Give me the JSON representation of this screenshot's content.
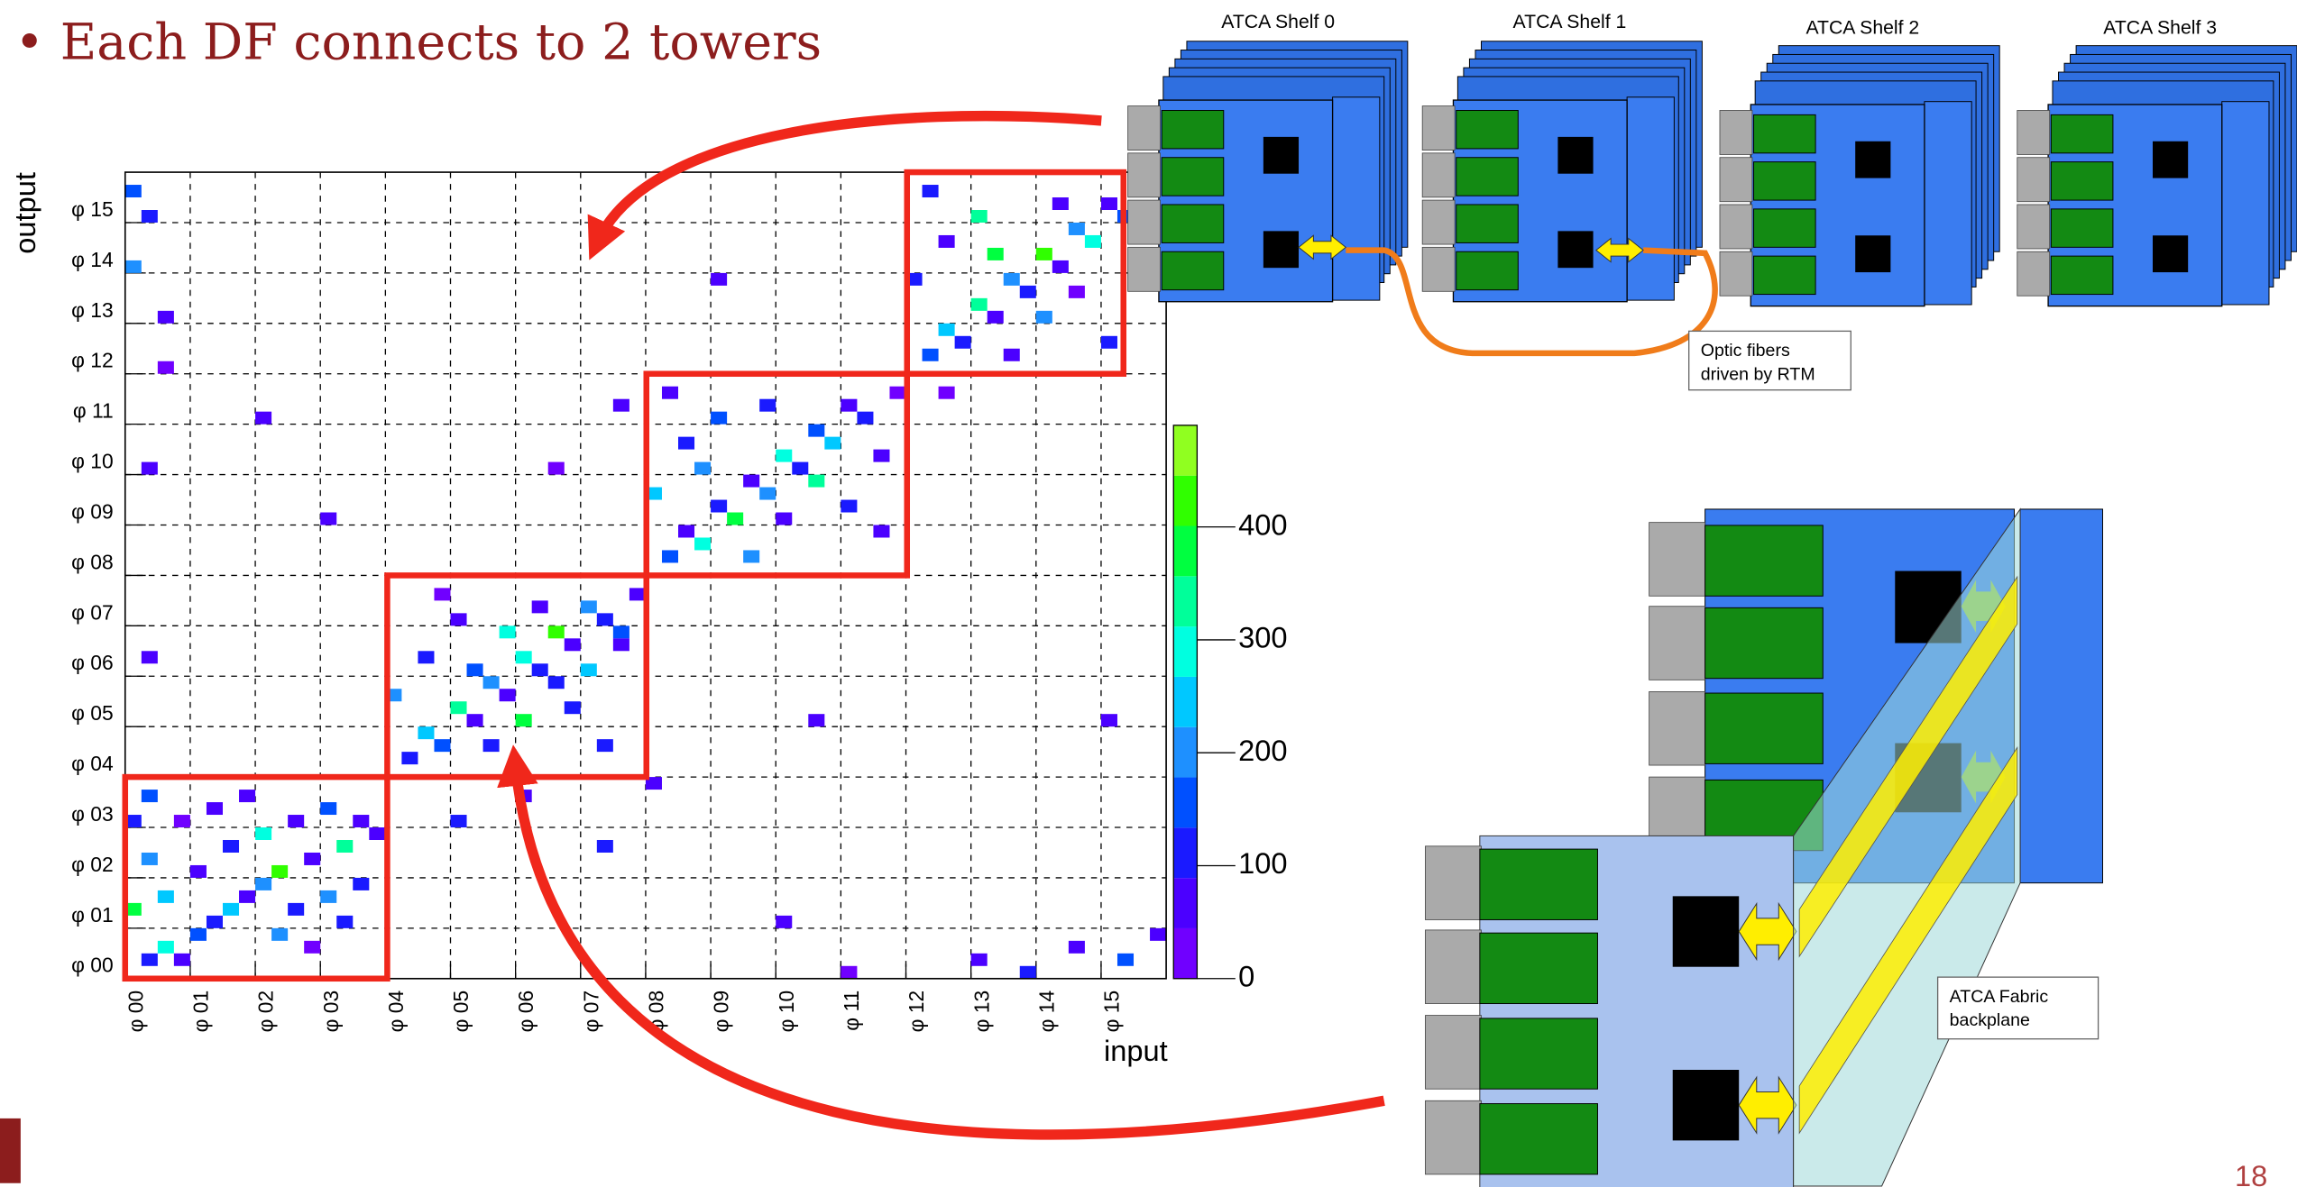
{
  "title": "• Each DF connects to 2 towers",
  "page_number": 18,
  "diagram": {
    "shelves": [
      "ATCA Shelf 0",
      "ATCA Shelf 1",
      "ATCA Shelf 2",
      "ATCA Shelf 3"
    ],
    "fiber_label": [
      "Optic fibers",
      "driven by RTM"
    ],
    "backplane_label": [
      "ATCA Fabric",
      "backplane"
    ]
  },
  "chart_data": {
    "type": "heatmap",
    "x_label": "input",
    "y_label": "output",
    "xlim": [
      0,
      64
    ],
    "ylim": [
      0,
      64
    ],
    "xticks": [
      {
        "value": 0,
        "label": "φ 00"
      },
      {
        "value": 4,
        "label": "φ 01"
      },
      {
        "value": 8,
        "label": "φ 02"
      },
      {
        "value": 12,
        "label": "φ 03"
      },
      {
        "value": 16,
        "label": "φ 04"
      },
      {
        "value": 20,
        "label": "φ 05"
      },
      {
        "value": 24,
        "label": "φ 06"
      },
      {
        "value": 28,
        "label": "φ 07"
      },
      {
        "value": 32,
        "label": "φ 08"
      },
      {
        "value": 36,
        "label": "φ 09"
      },
      {
        "value": 40,
        "label": "φ 10"
      },
      {
        "value": 44,
        "label": "φ 11"
      },
      {
        "value": 48,
        "label": "φ 12"
      },
      {
        "value": 52,
        "label": "φ 13"
      },
      {
        "value": 56,
        "label": "φ 14"
      },
      {
        "value": 60,
        "label": "φ 15"
      }
    ],
    "yticks": [
      {
        "value": 0,
        "label": "φ 00"
      },
      {
        "value": 4,
        "label": "φ 01"
      },
      {
        "value": 8,
        "label": "φ 02"
      },
      {
        "value": 12,
        "label": "φ 03"
      },
      {
        "value": 16,
        "label": "φ 04"
      },
      {
        "value": 20,
        "label": "φ 05"
      },
      {
        "value": 24,
        "label": "φ 06"
      },
      {
        "value": 28,
        "label": "φ 07"
      },
      {
        "value": 32,
        "label": "φ 08"
      },
      {
        "value": 36,
        "label": "φ 09"
      },
      {
        "value": 40,
        "label": "φ 10"
      },
      {
        "value": 44,
        "label": "φ 11"
      },
      {
        "value": 48,
        "label": "φ 12"
      },
      {
        "value": 52,
        "label": "φ 13"
      },
      {
        "value": 56,
        "label": "φ 14"
      },
      {
        "value": 60,
        "label": "φ 15"
      }
    ],
    "grid": true,
    "zlim": [
      0,
      490
    ],
    "zticks": [
      0,
      100,
      200,
      300,
      400
    ],
    "colorscale": [
      "#7000ff",
      "#4b00ff",
      "#1a1aff",
      "#0050ff",
      "#1e90ff",
      "#00c8ff",
      "#00ffe0",
      "#00ff9a",
      "#00ff40",
      "#30ff00",
      "#90ff20"
    ],
    "cells": [
      [
        1,
        1,
        120
      ],
      [
        2,
        2,
        300
      ],
      [
        3,
        1,
        80
      ],
      [
        4,
        3,
        150
      ],
      [
        5,
        4,
        90
      ],
      [
        6,
        5,
        260
      ],
      [
        7,
        6,
        60
      ],
      [
        8,
        7,
        180
      ],
      [
        9,
        8,
        420
      ],
      [
        10,
        5,
        110
      ],
      [
        11,
        9,
        70
      ],
      [
        12,
        6,
        200
      ],
      [
        13,
        10,
        340
      ],
      [
        14,
        7,
        90
      ],
      [
        15,
        11,
        50
      ],
      [
        2,
        6,
        240
      ],
      [
        4,
        8,
        60
      ],
      [
        6,
        10,
        130
      ],
      [
        8,
        11,
        310
      ],
      [
        10,
        12,
        80
      ],
      [
        3,
        12,
        40
      ],
      [
        12,
        13,
        150
      ],
      [
        14,
        12,
        60
      ],
      [
        1,
        9,
        200
      ],
      [
        5,
        13,
        70
      ],
      [
        9,
        3,
        220
      ],
      [
        11,
        2,
        30
      ],
      [
        13,
        4,
        100
      ],
      [
        7,
        14,
        50
      ],
      [
        0,
        5,
        380
      ],
      [
        0,
        12,
        90
      ],
      [
        1,
        14,
        160
      ],
      [
        17,
        17,
        90
      ],
      [
        18,
        19,
        260
      ],
      [
        19,
        18,
        140
      ],
      [
        20,
        21,
        350
      ],
      [
        21,
        20,
        80
      ],
      [
        22,
        23,
        190
      ],
      [
        23,
        22,
        60
      ],
      [
        24,
        25,
        300
      ],
      [
        25,
        24,
        120
      ],
      [
        26,
        27,
        440
      ],
      [
        27,
        26,
        70
      ],
      [
        28,
        29,
        210
      ],
      [
        29,
        28,
        100
      ],
      [
        30,
        27,
        160
      ],
      [
        31,
        30,
        50
      ],
      [
        16,
        22,
        200
      ],
      [
        18,
        25,
        110
      ],
      [
        20,
        28,
        60
      ],
      [
        22,
        18,
        130
      ],
      [
        24,
        20,
        380
      ],
      [
        26,
        23,
        90
      ],
      [
        28,
        24,
        240
      ],
      [
        30,
        26,
        70
      ],
      [
        19,
        30,
        40
      ],
      [
        21,
        24,
        170
      ],
      [
        23,
        27,
        280
      ],
      [
        25,
        29,
        60
      ],
      [
        27,
        21,
        120
      ],
      [
        29,
        18,
        90
      ],
      [
        33,
        33,
        160
      ],
      [
        34,
        35,
        80
      ],
      [
        35,
        34,
        270
      ],
      [
        36,
        37,
        120
      ],
      [
        37,
        36,
        400
      ],
      [
        38,
        39,
        60
      ],
      [
        39,
        38,
        190
      ],
      [
        40,
        41,
        300
      ],
      [
        41,
        40,
        90
      ],
      [
        42,
        43,
        150
      ],
      [
        43,
        42,
        230
      ],
      [
        44,
        45,
        70
      ],
      [
        45,
        44,
        110
      ],
      [
        46,
        41,
        60
      ],
      [
        47,
        46,
        40
      ],
      [
        32,
        38,
        250
      ],
      [
        34,
        42,
        90
      ],
      [
        36,
        44,
        140
      ],
      [
        38,
        33,
        180
      ],
      [
        40,
        36,
        60
      ],
      [
        42,
        39,
        330
      ],
      [
        44,
        37,
        100
      ],
      [
        46,
        35,
        50
      ],
      [
        33,
        46,
        80
      ],
      [
        35,
        40,
        220
      ],
      [
        39,
        45,
        120
      ],
      [
        49,
        49,
        140
      ],
      [
        50,
        51,
        260
      ],
      [
        51,
        50,
        90
      ],
      [
        52,
        53,
        350
      ],
      [
        53,
        52,
        70
      ],
      [
        54,
        55,
        200
      ],
      [
        55,
        54,
        130
      ],
      [
        56,
        57,
        410
      ],
      [
        57,
        56,
        80
      ],
      [
        58,
        59,
        180
      ],
      [
        59,
        58,
        300
      ],
      [
        60,
        61,
        60
      ],
      [
        61,
        60,
        150
      ],
      [
        62,
        63,
        90
      ],
      [
        63,
        62,
        240
      ],
      [
        48,
        55,
        110
      ],
      [
        50,
        58,
        70
      ],
      [
        52,
        60,
        320
      ],
      [
        54,
        49,
        60
      ],
      [
        56,
        52,
        190
      ],
      [
        58,
        54,
        40
      ],
      [
        60,
        50,
        130
      ],
      [
        62,
        56,
        270
      ],
      [
        49,
        62,
        100
      ],
      [
        53,
        57,
        360
      ],
      [
        57,
        61,
        80
      ],
      [
        1,
        40,
        60
      ],
      [
        1,
        25,
        70
      ],
      [
        2,
        52,
        80
      ],
      [
        1,
        60,
        120
      ],
      [
        29,
        10,
        90
      ],
      [
        32,
        15,
        60
      ],
      [
        40,
        4,
        50
      ],
      [
        52,
        1,
        80
      ],
      [
        55,
        0,
        100
      ],
      [
        58,
        2,
        70
      ],
      [
        61,
        1,
        150
      ],
      [
        63,
        3,
        60
      ],
      [
        44,
        0,
        40
      ],
      [
        20,
        12,
        110
      ],
      [
        24,
        14,
        60
      ],
      [
        30,
        45,
        50
      ],
      [
        36,
        55,
        70
      ],
      [
        42,
        20,
        60
      ],
      [
        50,
        46,
        40
      ],
      [
        26,
        40,
        30
      ],
      [
        60,
        20,
        60
      ],
      [
        12,
        36,
        80
      ],
      [
        8,
        44,
        50
      ],
      [
        0,
        56,
        200
      ],
      [
        0,
        62,
        160
      ],
      [
        2,
        48,
        40
      ]
    ]
  }
}
